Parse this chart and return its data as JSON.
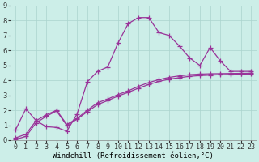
{
  "background_color": "#cceee8",
  "grid_color": "#aad4ce",
  "line_color": "#993399",
  "linewidth": 0.9,
  "xlim": [
    -0.5,
    23.5
  ],
  "ylim": [
    0,
    9
  ],
  "xlabel": "Windchill (Refroidissement éolien,°C)",
  "xlabel_fontsize": 6.5,
  "tick_fontsize": 6,
  "line1_x": [
    0,
    1,
    2,
    3,
    4,
    5,
    6,
    7,
    8,
    9,
    10,
    11,
    12,
    13,
    14,
    15,
    16,
    17,
    18,
    19,
    20,
    21,
    22,
    23
  ],
  "line1_y": [
    0.7,
    2.1,
    1.3,
    0.9,
    0.85,
    0.6,
    1.75,
    3.9,
    4.6,
    4.9,
    6.5,
    7.8,
    8.2,
    8.2,
    7.2,
    7.0,
    6.3,
    5.5,
    5.0,
    6.2,
    5.3,
    4.6,
    4.6,
    4.6
  ],
  "line2_x": [
    0,
    1,
    2,
    3,
    4,
    5,
    6,
    7,
    8,
    9,
    10,
    11,
    12,
    13,
    14,
    15,
    16,
    17,
    18,
    19,
    20,
    21,
    22,
    23
  ],
  "line2_y": [
    0.15,
    0.4,
    1.3,
    1.7,
    2.0,
    1.05,
    1.45,
    2.0,
    2.5,
    2.75,
    3.05,
    3.3,
    3.6,
    3.85,
    4.05,
    4.2,
    4.3,
    4.38,
    4.42,
    4.44,
    4.45,
    4.46,
    4.47,
    4.48
  ],
  "line3_x": [
    0,
    1,
    2,
    3,
    4,
    5,
    6,
    7,
    8,
    9,
    10,
    11,
    12,
    13,
    14,
    15,
    16,
    17,
    18,
    19,
    20,
    21,
    22,
    23
  ],
  "line3_y": [
    0.05,
    0.25,
    1.15,
    1.6,
    1.95,
    0.98,
    1.4,
    1.9,
    2.38,
    2.65,
    2.95,
    3.2,
    3.48,
    3.72,
    3.93,
    4.08,
    4.18,
    4.27,
    4.32,
    4.35,
    4.38,
    4.4,
    4.42,
    4.43
  ]
}
